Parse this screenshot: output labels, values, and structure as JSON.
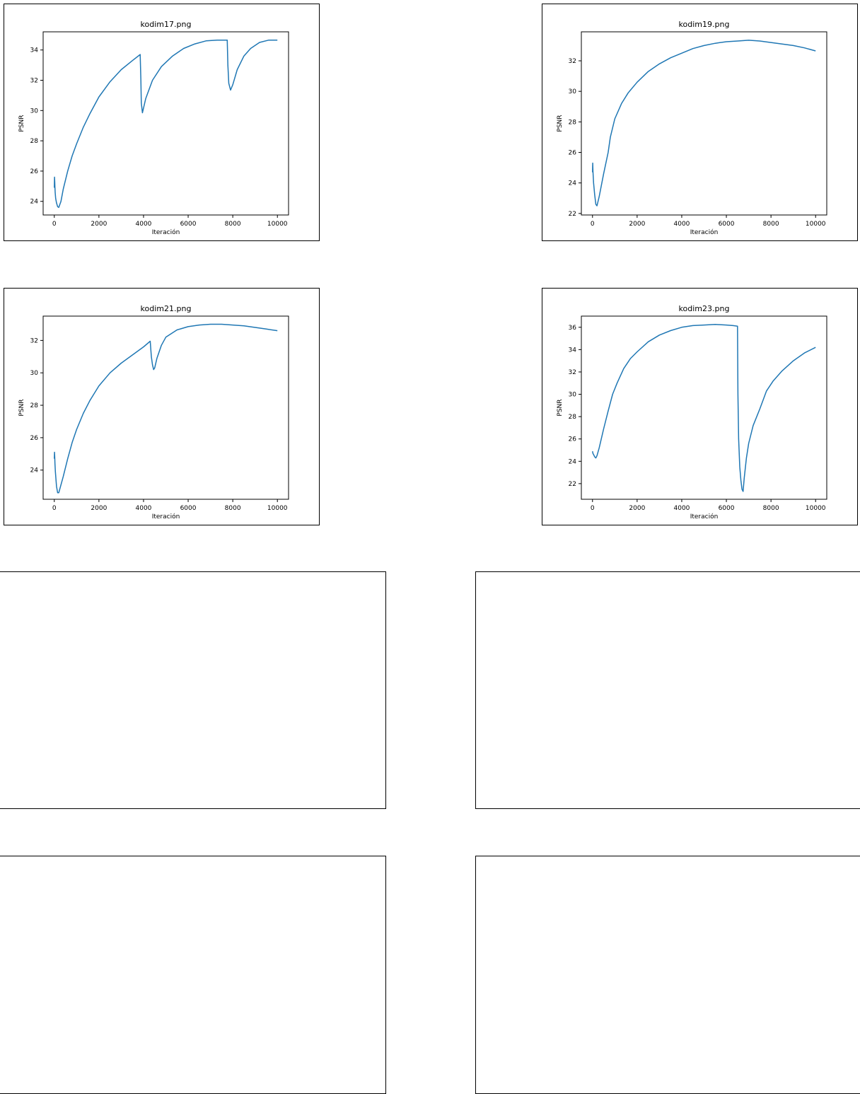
{
  "chart_data": [
    {
      "type": "line",
      "title": "kodim17.png",
      "xlabel": "Iteración",
      "ylabel": "PSNR",
      "xlim": [
        -500,
        10500
      ],
      "ylim": [
        23.1,
        35.2
      ],
      "xticks": [
        0,
        2000,
        4000,
        6000,
        8000,
        10000
      ],
      "yticks": [
        24,
        26,
        28,
        30,
        32,
        34
      ],
      "color": "#1f77b4",
      "series": [
        {
          "name": "PSNR",
          "x": [
            0,
            10,
            20,
            30,
            40,
            60,
            100,
            150,
            200,
            300,
            400,
            600,
            800,
            1000,
            1300,
            1600,
            2000,
            2500,
            3000,
            3500,
            3850,
            3880,
            3900,
            3950,
            4100,
            4400,
            4800,
            5300,
            5800,
            6300,
            6800,
            7300,
            7750,
            7780,
            7820,
            7900,
            8000,
            8200,
            8500,
            8800,
            9200,
            9600,
            10000
          ],
          "y": [
            24.9,
            25.6,
            25.3,
            24.9,
            24.6,
            24.2,
            23.9,
            23.65,
            23.6,
            24.0,
            24.8,
            26.0,
            27.0,
            27.8,
            28.9,
            29.8,
            30.9,
            31.9,
            32.7,
            33.3,
            33.7,
            32.0,
            30.5,
            29.85,
            30.8,
            32.0,
            32.9,
            33.6,
            34.1,
            34.4,
            34.6,
            34.65,
            34.65,
            33.0,
            31.8,
            31.35,
            31.7,
            32.7,
            33.6,
            34.1,
            34.5,
            34.65,
            34.65
          ]
        }
      ]
    },
    {
      "type": "line",
      "title": "kodim19.png",
      "xlabel": "Iteración",
      "ylabel": "PSNR",
      "xlim": [
        -500,
        10500
      ],
      "ylim": [
        21.9,
        33.9
      ],
      "xticks": [
        0,
        2000,
        4000,
        6000,
        8000,
        10000
      ],
      "yticks": [
        22,
        24,
        26,
        28,
        30,
        32
      ],
      "color": "#1f77b4",
      "series": [
        {
          "name": "PSNR",
          "x": [
            0,
            10,
            20,
            30,
            50,
            100,
            150,
            200,
            300,
            500,
            700,
            800,
            1000,
            1300,
            1600,
            2000,
            2500,
            3000,
            3500,
            4000,
            4500,
            5000,
            5500,
            6000,
            6500,
            7000,
            7500,
            8000,
            8500,
            9000,
            9500,
            10000
          ],
          "y": [
            24.7,
            25.3,
            24.8,
            24.5,
            24.0,
            23.2,
            22.6,
            22.5,
            23.1,
            24.6,
            26.0,
            27.0,
            28.2,
            29.2,
            29.9,
            30.6,
            31.3,
            31.8,
            32.2,
            32.5,
            32.8,
            33.0,
            33.15,
            33.25,
            33.3,
            33.35,
            33.3,
            33.2,
            33.1,
            33.0,
            32.85,
            32.65
          ]
        }
      ]
    },
    {
      "type": "line",
      "title": "kodim21.png",
      "xlabel": "Iteración",
      "ylabel": "PSNR",
      "xlim": [
        -500,
        10500
      ],
      "ylim": [
        22.2,
        33.5
      ],
      "xticks": [
        0,
        2000,
        4000,
        6000,
        8000,
        10000
      ],
      "yticks": [
        24,
        26,
        28,
        30,
        32
      ],
      "color": "#1f77b4",
      "series": [
        {
          "name": "PSNR",
          "x": [
            0,
            10,
            20,
            30,
            50,
            100,
            150,
            200,
            400,
            600,
            800,
            1000,
            1300,
            1600,
            2000,
            2500,
            3000,
            3500,
            4000,
            4300,
            4350,
            4400,
            4450,
            4500,
            4600,
            4800,
            5000,
            5500,
            6000,
            6500,
            7000,
            7500,
            8000,
            8500,
            9000,
            9500,
            10000
          ],
          "y": [
            24.7,
            25.1,
            24.8,
            24.4,
            23.9,
            23.0,
            22.6,
            22.6,
            23.6,
            24.7,
            25.7,
            26.5,
            27.5,
            28.3,
            29.2,
            30.0,
            30.6,
            31.1,
            31.6,
            31.95,
            31.0,
            30.5,
            30.2,
            30.3,
            30.9,
            31.7,
            32.2,
            32.65,
            32.85,
            32.95,
            33.0,
            33.0,
            32.95,
            32.9,
            32.8,
            32.7,
            32.6
          ]
        }
      ]
    },
    {
      "type": "line",
      "title": "kodim23.png",
      "xlabel": "Iteración",
      "ylabel": "PSNR",
      "xlim": [
        -500,
        10500
      ],
      "ylim": [
        20.6,
        37.0
      ],
      "xticks": [
        0,
        2000,
        4000,
        6000,
        8000,
        10000
      ],
      "yticks": [
        22,
        24,
        26,
        28,
        30,
        32,
        34,
        36
      ],
      "color": "#1f77b4",
      "series": [
        {
          "name": "PSNR",
          "x": [
            0,
            20,
            50,
            100,
            150,
            200,
            300,
            500,
            700,
            900,
            1100,
            1400,
            1700,
            2000,
            2500,
            3000,
            3500,
            4000,
            4500,
            5000,
            5500,
            6000,
            6300,
            6500,
            6520,
            6550,
            6600,
            6650,
            6700,
            6750,
            6800,
            6900,
            7000,
            7200,
            7500,
            7800,
            8100,
            8500,
            9000,
            9500,
            10000
          ],
          "y": [
            24.9,
            24.7,
            24.6,
            24.4,
            24.3,
            24.5,
            25.2,
            26.9,
            28.5,
            30.0,
            31.0,
            32.3,
            33.2,
            33.8,
            34.7,
            35.3,
            35.7,
            36.0,
            36.15,
            36.2,
            36.25,
            36.2,
            36.15,
            36.1,
            30.0,
            26.0,
            23.5,
            22.3,
            21.5,
            21.3,
            22.5,
            24.3,
            25.6,
            27.2,
            28.7,
            30.3,
            31.2,
            32.1,
            33.0,
            33.7,
            34.2
          ]
        }
      ]
    }
  ]
}
